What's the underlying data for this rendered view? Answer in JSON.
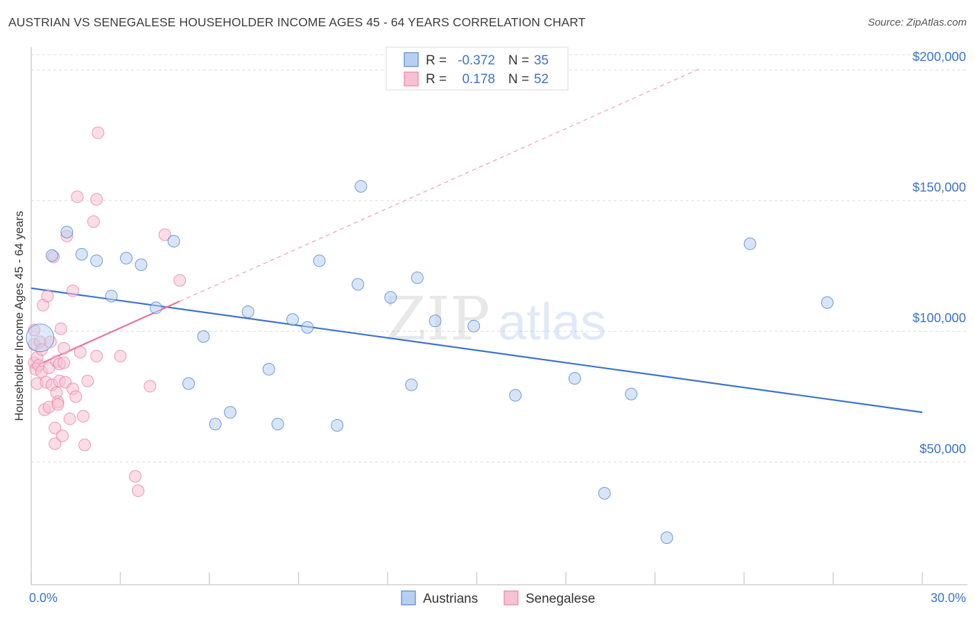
{
  "title": "AUSTRIAN VS SENEGALESE HOUSEHOLDER INCOME AGES 45 - 64 YEARS CORRELATION CHART",
  "source": "Source: ZipAtlas.com",
  "watermark": {
    "zip": "ZIP",
    "atlas": "atlas"
  },
  "colors": {
    "blue": "#3a73c9",
    "blue_fill": "#b7d0f0",
    "pink": "#e8729a",
    "pink_fill": "#f6c1d2",
    "grid": "#dcdcdc"
  },
  "legend": {
    "rows": [
      {
        "r_label": "R =",
        "r_value": "-0.372",
        "n_label": "N =",
        "n_value": "35"
      },
      {
        "r_label": "R =",
        "r_value": "0.178",
        "n_label": "N =",
        "n_value": "52"
      }
    ]
  },
  "chart_data": {
    "type": "scatter",
    "ylabel": "Householder Income Ages 45 - 64 years",
    "x_tick_labels": [
      "0.0%",
      "30.0%"
    ],
    "y_tick_labels": [
      "$50,000",
      "$100,000",
      "$150,000",
      "$200,000"
    ],
    "y_ticks": [
      50000,
      100000,
      150000,
      200000
    ],
    "xlim": [
      0,
      30
    ],
    "ylim": [
      3000,
      208000
    ],
    "grid": true,
    "legend_position": "top-center",
    "series": [
      {
        "name": "Austrians",
        "color": "#3a73c9",
        "points": [
          [
            0.3,
            97500
          ],
          [
            1.2,
            138000
          ],
          [
            0.7,
            129000
          ],
          [
            1.7,
            129500
          ],
          [
            2.2,
            127000
          ],
          [
            3.2,
            128000
          ],
          [
            3.7,
            125500
          ],
          [
            4.8,
            134500
          ],
          [
            2.7,
            113500
          ],
          [
            4.2,
            109000
          ],
          [
            5.8,
            98000
          ],
          [
            5.3,
            80000
          ],
          [
            6.7,
            69000
          ],
          [
            6.2,
            64500
          ],
          [
            7.3,
            107500
          ],
          [
            8.0,
            85500
          ],
          [
            8.3,
            64500
          ],
          [
            8.8,
            104500
          ],
          [
            9.3,
            101500
          ],
          [
            9.7,
            127000
          ],
          [
            10.3,
            64000
          ],
          [
            11.0,
            118000
          ],
          [
            11.1,
            155500
          ],
          [
            12.1,
            113000
          ],
          [
            12.8,
            79500
          ],
          [
            13.0,
            120500
          ],
          [
            13.6,
            104000
          ],
          [
            14.9,
            102000
          ],
          [
            16.3,
            75500
          ],
          [
            18.3,
            82000
          ],
          [
            19.3,
            38000
          ],
          [
            20.2,
            76000
          ],
          [
            21.4,
            21000
          ],
          [
            24.2,
            133500
          ],
          [
            26.8,
            111000
          ]
        ]
      },
      {
        "name": "Senegalese",
        "color": "#e8729a",
        "points": [
          [
            0.1,
            100500
          ],
          [
            0.1,
            95000
          ],
          [
            0.1,
            88000
          ],
          [
            0.15,
            85500
          ],
          [
            0.2,
            90000
          ],
          [
            0.2,
            80000
          ],
          [
            0.25,
            87000
          ],
          [
            0.3,
            96000
          ],
          [
            0.35,
            93000
          ],
          [
            0.35,
            84500
          ],
          [
            0.4,
            110000
          ],
          [
            0.45,
            70000
          ],
          [
            0.5,
            80500
          ],
          [
            0.55,
            113500
          ],
          [
            0.6,
            71000
          ],
          [
            0.6,
            86000
          ],
          [
            0.65,
            96000
          ],
          [
            0.7,
            79500
          ],
          [
            0.75,
            128500
          ],
          [
            0.8,
            63000
          ],
          [
            0.8,
            57000
          ],
          [
            0.85,
            88500
          ],
          [
            0.85,
            76500
          ],
          [
            0.9,
            73000
          ],
          [
            0.9,
            72000
          ],
          [
            0.95,
            81000
          ],
          [
            0.95,
            87500
          ],
          [
            1.0,
            101000
          ],
          [
            1.05,
            60000
          ],
          [
            1.1,
            93500
          ],
          [
            1.1,
            88000
          ],
          [
            1.15,
            80500
          ],
          [
            1.2,
            136500
          ],
          [
            1.3,
            66500
          ],
          [
            1.4,
            115500
          ],
          [
            1.4,
            78000
          ],
          [
            1.5,
            75000
          ],
          [
            1.55,
            151500
          ],
          [
            1.65,
            92000
          ],
          [
            1.75,
            67500
          ],
          [
            1.8,
            56500
          ],
          [
            1.9,
            81000
          ],
          [
            2.1,
            142000
          ],
          [
            2.2,
            90500
          ],
          [
            2.25,
            176000
          ],
          [
            2.2,
            150500
          ],
          [
            3.0,
            90500
          ],
          [
            3.5,
            44500
          ],
          [
            3.6,
            39000
          ],
          [
            4.0,
            79000
          ],
          [
            4.5,
            137000
          ],
          [
            5.0,
            119500
          ]
        ]
      }
    ],
    "trend_lines": [
      {
        "series": "Austrians",
        "x": [
          0.0,
          30.0
        ],
        "y": [
          116500,
          69000
        ]
      },
      {
        "series": "Senegalese",
        "x": [
          0.0,
          5.0
        ],
        "y": [
          86000,
          111500
        ],
        "extension_x": [
          5.0,
          22.5
        ],
        "extension_y": [
          111500,
          200500
        ]
      }
    ]
  }
}
